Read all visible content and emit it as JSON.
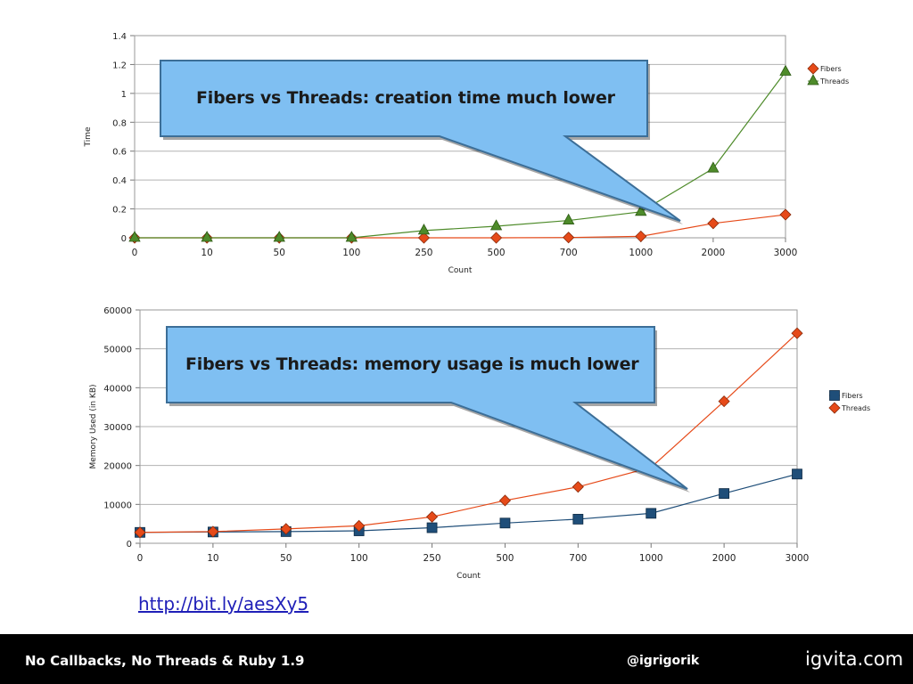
{
  "charts": {
    "top": {
      "type": "line",
      "xlabel": "Count",
      "ylabel": "Time",
      "ylim": [
        0,
        1.4
      ],
      "y_ticks": [
        "0",
        "0.2",
        "0.4",
        "0.6",
        "0.8",
        "1",
        "1.2",
        "1.4"
      ],
      "categories": [
        "0",
        "10",
        "50",
        "100",
        "250",
        "500",
        "700",
        "1000",
        "2000",
        "3000"
      ],
      "legend_position": "right",
      "grid": true,
      "series": [
        {
          "name": "Fibers",
          "color": "#e64a19",
          "marker": "diamond",
          "values": [
            0,
            0,
            0,
            0,
            0,
            0,
            0.002,
            0.01,
            0.1,
            0.16
          ]
        },
        {
          "name": "Threads",
          "color": "#4e8b2a",
          "marker": "triangle",
          "values": [
            0,
            0,
            0,
            0,
            0.05,
            0.08,
            0.12,
            0.18,
            0.48,
            1.15
          ]
        }
      ],
      "callout": "Fibers vs Threads: creation time much lower"
    },
    "bottom": {
      "type": "line",
      "xlabel": "Count",
      "ylabel": "Memory Used (in KB)",
      "ylim": [
        0,
        60000
      ],
      "y_ticks": [
        "0",
        "10000",
        "20000",
        "30000",
        "40000",
        "50000",
        "60000"
      ],
      "categories": [
        "0",
        "10",
        "50",
        "100",
        "250",
        "500",
        "700",
        "1000",
        "2000",
        "3000"
      ],
      "legend_position": "right",
      "grid": true,
      "series": [
        {
          "name": "Fibers",
          "color": "#1f4e79",
          "marker": "square",
          "values": [
            2800,
            2900,
            3000,
            3200,
            4000,
            5200,
            6200,
            7700,
            12800,
            17800
          ]
        },
        {
          "name": "Threads",
          "color": "#e64a19",
          "marker": "diamond",
          "values": [
            2800,
            3000,
            3700,
            4500,
            6800,
            11000,
            14500,
            19500,
            36500,
            54000
          ]
        }
      ],
      "callout": "Fibers vs Threads: memory usage is much lower"
    }
  },
  "link": "http://bit.ly/aesXy5",
  "footer": {
    "title": "No Callbacks, No Threads & Ruby 1.9",
    "handle": "@igrigorik",
    "site": "igvita.com"
  }
}
